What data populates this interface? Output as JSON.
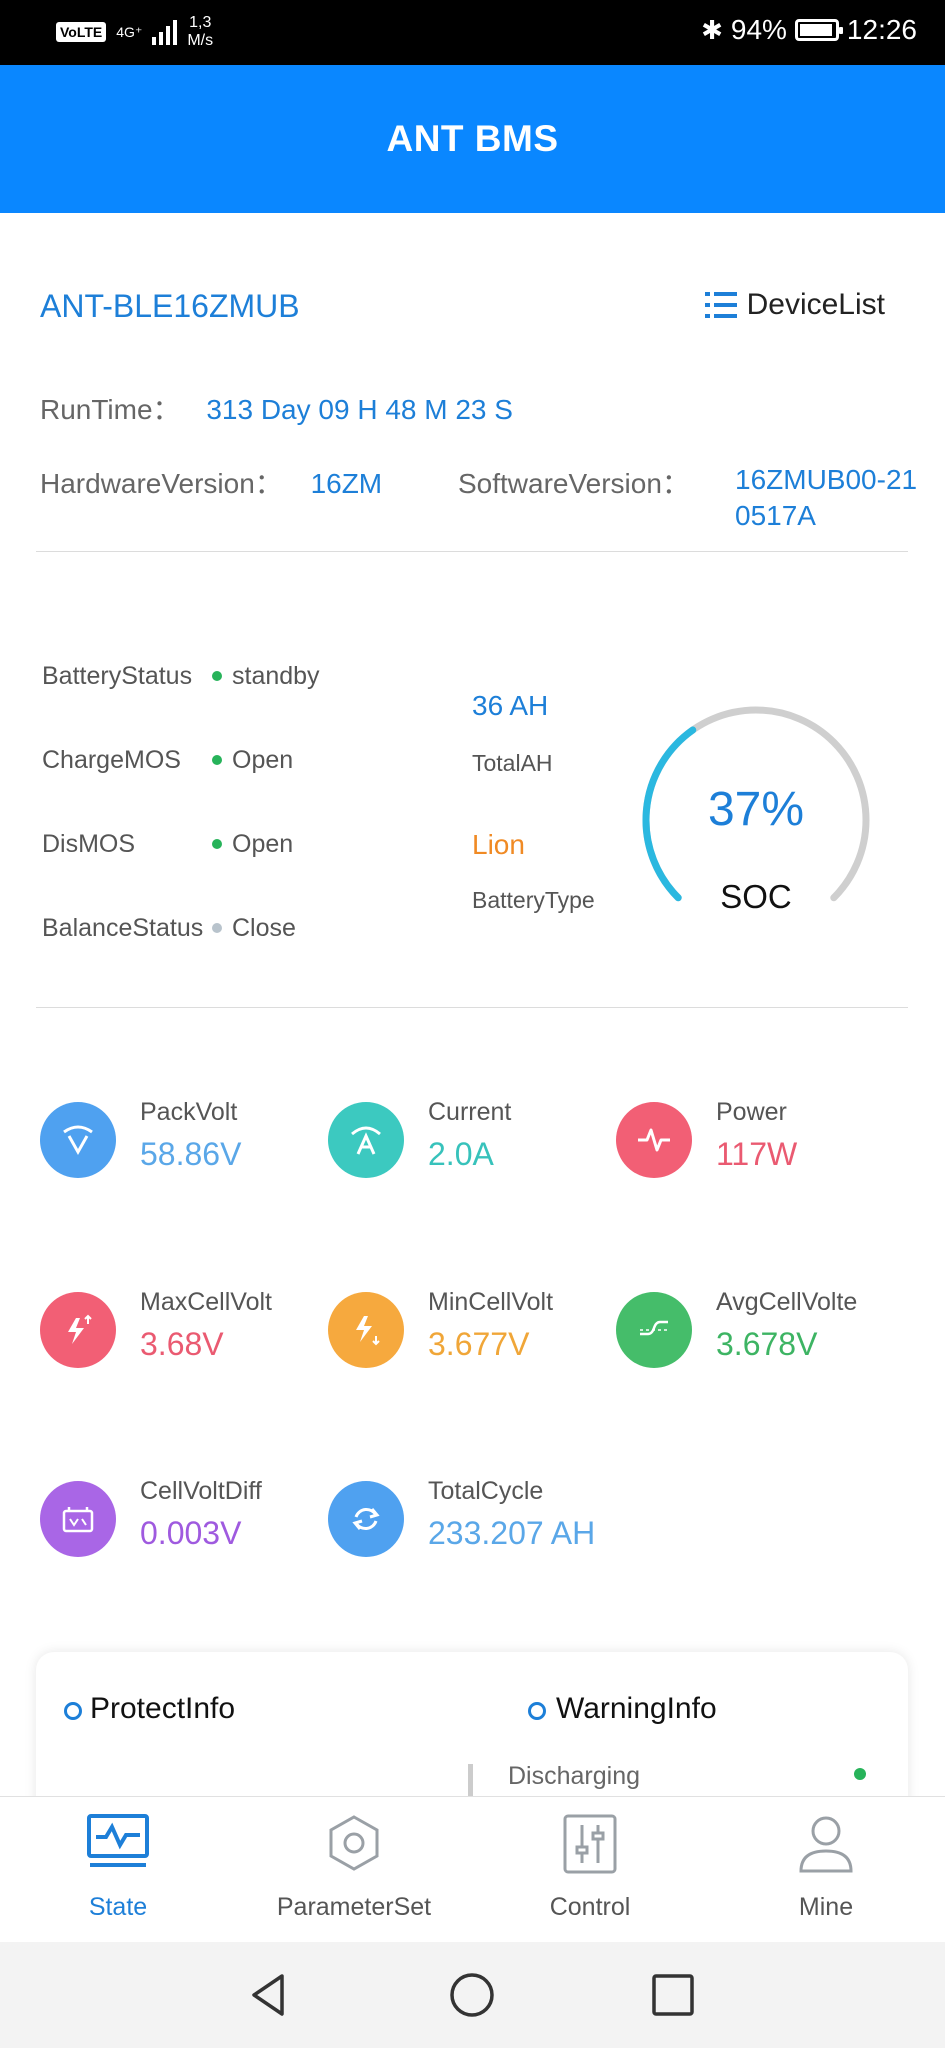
{
  "status_bar": {
    "network_badge": "VoLTE",
    "network_type": "4G⁺",
    "speed_value": "1,3",
    "speed_unit": "M/s",
    "battery_percent": "94%",
    "battery_level": 0.94,
    "time": "12:26"
  },
  "app": {
    "title": "ANT BMS"
  },
  "device": {
    "name": "ANT-BLE16ZMUB",
    "list_label": "DeviceList",
    "runtime_label": "RunTime：",
    "runtime_value": "313 Day 09 H 48 M 23 S",
    "hardware_label": "HardwareVersion：",
    "hardware_value": "16ZM",
    "software_label": "SoftwareVersion：",
    "software_value_line1": "16ZMUB00-21",
    "software_value_line2": "0517A"
  },
  "status": [
    {
      "label": "BatteryStatus",
      "value": "standby",
      "dot_color": "#27b35a"
    },
    {
      "label": "ChargeMOS",
      "value": "Open",
      "dot_color": "#27b35a"
    },
    {
      "label": "DisMOS",
      "value": "Open",
      "dot_color": "#27b35a"
    },
    {
      "label": "BalanceStatus",
      "value": "Close",
      "dot_color": "#b8c3cc"
    }
  ],
  "capacity": {
    "total_ah_value": "36 AH",
    "total_ah_label": "TotalAH",
    "battery_type_value": "Lion",
    "battery_type_label": "BatteryType"
  },
  "soc": {
    "percent_label": "37%",
    "percent": 37,
    "label": "SOC"
  },
  "metrics": [
    {
      "label": "PackVolt",
      "value": "58.86V",
      "color": "#4fa1f0",
      "value_color": "#5aa7e8",
      "icon": "voltage-icon"
    },
    {
      "label": "Current",
      "value": "2.0A",
      "color": "#3cc9c0",
      "value_color": "#37c2bb",
      "icon": "current-icon"
    },
    {
      "label": "Power",
      "value": "117W",
      "color": "#f25f75",
      "value_color": "#ea5a71",
      "icon": "power-icon"
    },
    {
      "label": "MaxCellVolt",
      "value": "3.68V",
      "color": "#f25f75",
      "value_color": "#ea5a71",
      "icon": "max-cell-icon"
    },
    {
      "label": "MinCellVolt",
      "value": "3.677V",
      "color": "#f6a93e",
      "value_color": "#f0a638",
      "icon": "min-cell-icon"
    },
    {
      "label": "AvgCellVolte",
      "value": "3.678V",
      "color": "#45bd6a",
      "value_color": "#3db463",
      "icon": "avg-cell-icon"
    },
    {
      "label": "CellVoltDiff",
      "value": "0.003V",
      "color": "#a966e6",
      "value_color": "#9f5adf",
      "icon": "cell-diff-icon"
    },
    {
      "label": "TotalCycle",
      "value": "233.207 AH",
      "color": "#4fa1f0",
      "value_color": "#5aa7e8",
      "icon": "cycle-icon"
    }
  ],
  "info_card": {
    "protect_title": "ProtectInfo",
    "warning_title": "WarningInfo",
    "warning_first_item": "Discharging"
  },
  "tabs": [
    {
      "label": "State",
      "icon": "state-icon"
    },
    {
      "label": "ParameterSet",
      "icon": "parameter-icon"
    },
    {
      "label": "Control",
      "icon": "control-icon"
    },
    {
      "label": "Mine",
      "icon": "user-icon"
    }
  ]
}
